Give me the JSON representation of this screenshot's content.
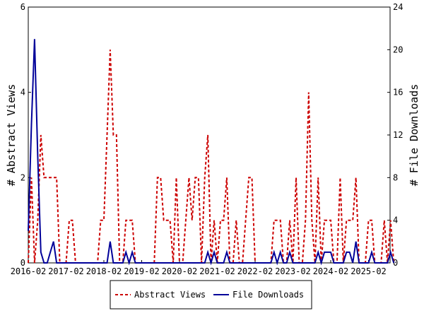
{
  "chart_data": {
    "type": "line",
    "title": "",
    "xlabel": "",
    "ylabel_left": "# Abstract Views",
    "ylabel_right": "# File Downloads",
    "ylim_left": [
      0,
      6
    ],
    "ylim_right": [
      0,
      24
    ],
    "yticks_left": [
      "0",
      "2",
      "4",
      "6"
    ],
    "yticks_right": [
      "0",
      "4",
      "8",
      "12",
      "16",
      "20",
      "24"
    ],
    "x_ticks": [
      "2016-02",
      "2017-02",
      "2018-02",
      "2019-02",
      "2020-02",
      "2021-02",
      "2022-02",
      "2023-02",
      "2024-02",
      "2025-02"
    ],
    "x_range": [
      "2016-02",
      "2025-08"
    ],
    "grid": false,
    "legend_position": "bottom",
    "series": [
      {
        "name": "Abstract Views",
        "axis": "left",
        "color": "#cc0000",
        "style": "dashed",
        "points": [
          [
            "2016-02",
            0
          ],
          [
            "2016-03",
            2
          ],
          [
            "2016-04",
            0
          ],
          [
            "2016-05",
            1
          ],
          [
            "2016-06",
            3
          ],
          [
            "2016-07",
            2
          ],
          [
            "2016-08",
            2
          ],
          [
            "2016-09",
            2
          ],
          [
            "2016-10",
            2
          ],
          [
            "2016-11",
            2
          ],
          [
            "2016-12",
            0
          ],
          [
            "2017-01",
            0
          ],
          [
            "2017-02",
            0
          ],
          [
            "2017-03",
            1
          ],
          [
            "2017-04",
            1
          ],
          [
            "2017-05",
            0
          ],
          [
            "2017-06",
            0
          ],
          [
            "2017-07",
            0
          ],
          [
            "2017-08",
            0
          ],
          [
            "2017-09",
            0
          ],
          [
            "2017-10",
            0
          ],
          [
            "2017-11",
            0
          ],
          [
            "2017-12",
            0
          ],
          [
            "2018-01",
            1
          ],
          [
            "2018-02",
            1
          ],
          [
            "2018-03",
            3
          ],
          [
            "2018-04",
            5
          ],
          [
            "2018-05",
            3
          ],
          [
            "2018-06",
            3
          ],
          [
            "2018-07",
            0
          ],
          [
            "2018-08",
            0
          ],
          [
            "2018-09",
            1
          ],
          [
            "2018-10",
            1
          ],
          [
            "2018-11",
            1
          ],
          [
            "2018-12",
            0
          ],
          [
            "2019-01",
            0
          ],
          [
            "2019-02",
            0
          ],
          [
            "2019-03",
            0
          ],
          [
            "2019-04",
            0
          ],
          [
            "2019-05",
            0
          ],
          [
            "2019-06",
            0
          ],
          [
            "2019-07",
            2
          ],
          [
            "2019-08",
            2
          ],
          [
            "2019-09",
            1
          ],
          [
            "2019-10",
            1
          ],
          [
            "2019-11",
            1
          ],
          [
            "2019-12",
            0
          ],
          [
            "2020-01",
            2
          ],
          [
            "2020-02",
            0
          ],
          [
            "2020-03",
            0
          ],
          [
            "2020-04",
            1
          ],
          [
            "2020-05",
            2
          ],
          [
            "2020-06",
            1
          ],
          [
            "2020-07",
            2
          ],
          [
            "2020-08",
            2
          ],
          [
            "2020-09",
            0
          ],
          [
            "2020-10",
            2
          ],
          [
            "2020-11",
            3
          ],
          [
            "2020-12",
            0
          ],
          [
            "2021-01",
            1
          ],
          [
            "2021-02",
            0
          ],
          [
            "2021-03",
            1
          ],
          [
            "2021-04",
            1
          ],
          [
            "2021-05",
            2
          ],
          [
            "2021-06",
            0
          ],
          [
            "2021-07",
            0
          ],
          [
            "2021-08",
            1
          ],
          [
            "2021-09",
            0
          ],
          [
            "2021-10",
            0
          ],
          [
            "2021-11",
            1
          ],
          [
            "2021-12",
            2
          ],
          [
            "2022-01",
            2
          ],
          [
            "2022-02",
            0
          ],
          [
            "2022-03",
            0
          ],
          [
            "2022-04",
            0
          ],
          [
            "2022-05",
            0
          ],
          [
            "2022-06",
            0
          ],
          [
            "2022-07",
            0
          ],
          [
            "2022-08",
            1
          ],
          [
            "2022-09",
            1
          ],
          [
            "2022-10",
            1
          ],
          [
            "2022-11",
            0
          ],
          [
            "2022-12",
            0
          ],
          [
            "2023-01",
            1
          ],
          [
            "2023-02",
            0
          ],
          [
            "2023-03",
            2
          ],
          [
            "2023-04",
            0
          ],
          [
            "2023-05",
            0
          ],
          [
            "2023-06",
            1
          ],
          [
            "2023-07",
            4
          ],
          [
            "2023-08",
            1
          ],
          [
            "2023-09",
            0
          ],
          [
            "2023-10",
            2
          ],
          [
            "2023-11",
            0
          ],
          [
            "2023-12",
            1
          ],
          [
            "2024-01",
            1
          ],
          [
            "2024-02",
            1
          ],
          [
            "2024-03",
            0
          ],
          [
            "2024-04",
            0
          ],
          [
            "2024-05",
            2
          ],
          [
            "2024-06",
            0
          ],
          [
            "2024-07",
            1
          ],
          [
            "2024-08",
            1
          ],
          [
            "2024-09",
            1
          ],
          [
            "2024-10",
            2
          ],
          [
            "2024-11",
            0
          ],
          [
            "2024-12",
            0
          ],
          [
            "2025-01",
            0
          ],
          [
            "2025-02",
            1
          ],
          [
            "2025-03",
            1
          ],
          [
            "2025-04",
            0
          ],
          [
            "2025-05",
            0
          ],
          [
            "2025-06",
            0
          ],
          [
            "2025-07",
            1
          ],
          [
            "2025-08",
            0
          ],
          [
            "2025-09",
            1
          ],
          [
            "2025-10",
            0
          ]
        ]
      },
      {
        "name": "File Downloads",
        "axis": "right",
        "color": "#000099",
        "style": "solid",
        "points": [
          [
            "2016-02",
            3
          ],
          [
            "2016-03",
            13
          ],
          [
            "2016-04",
            21
          ],
          [
            "2016-05",
            10
          ],
          [
            "2016-06",
            1
          ],
          [
            "2016-07",
            0
          ],
          [
            "2016-08",
            0
          ],
          [
            "2016-09",
            1
          ],
          [
            "2016-10",
            2
          ],
          [
            "2016-11",
            0
          ],
          [
            "2016-12",
            0
          ],
          [
            "2017-01",
            0
          ],
          [
            "2017-02",
            0
          ],
          [
            "2017-03",
            0
          ],
          [
            "2017-04",
            0
          ],
          [
            "2017-05",
            0
          ],
          [
            "2017-06",
            0
          ],
          [
            "2017-07",
            0
          ],
          [
            "2017-08",
            0
          ],
          [
            "2017-09",
            0
          ],
          [
            "2017-10",
            0
          ],
          [
            "2017-11",
            0
          ],
          [
            "2017-12",
            0
          ],
          [
            "2018-01",
            0
          ],
          [
            "2018-02",
            0
          ],
          [
            "2018-03",
            0
          ],
          [
            "2018-04",
            2
          ],
          [
            "2018-05",
            0
          ],
          [
            "2018-06",
            0
          ],
          [
            "2018-07",
            0
          ],
          [
            "2018-08",
            0
          ],
          [
            "2018-09",
            1
          ],
          [
            "2018-10",
            0
          ],
          [
            "2018-11",
            1
          ],
          [
            "2018-12",
            0
          ],
          [
            "2019-01",
            0
          ],
          [
            "2019-02",
            0
          ],
          [
            "2019-03",
            0
          ],
          [
            "2019-04",
            0
          ],
          [
            "2019-05",
            0
          ],
          [
            "2019-06",
            0
          ],
          [
            "2019-07",
            0
          ],
          [
            "2019-08",
            0
          ],
          [
            "2019-09",
            0
          ],
          [
            "2019-10",
            0
          ],
          [
            "2019-11",
            0
          ],
          [
            "2019-12",
            0
          ],
          [
            "2020-01",
            0
          ],
          [
            "2020-02",
            0
          ],
          [
            "2020-03",
            0
          ],
          [
            "2020-04",
            0
          ],
          [
            "2020-05",
            0
          ],
          [
            "2020-06",
            0
          ],
          [
            "2020-07",
            0
          ],
          [
            "2020-08",
            0
          ],
          [
            "2020-09",
            0
          ],
          [
            "2020-10",
            0
          ],
          [
            "2020-11",
            1
          ],
          [
            "2020-12",
            0
          ],
          [
            "2021-01",
            1
          ],
          [
            "2021-02",
            0
          ],
          [
            "2021-03",
            0
          ],
          [
            "2021-04",
            0
          ],
          [
            "2021-05",
            1
          ],
          [
            "2021-06",
            0
          ],
          [
            "2021-07",
            0
          ],
          [
            "2021-08",
            0
          ],
          [
            "2021-09",
            0
          ],
          [
            "2021-10",
            0
          ],
          [
            "2021-11",
            0
          ],
          [
            "2021-12",
            0
          ],
          [
            "2022-01",
            0
          ],
          [
            "2022-02",
            0
          ],
          [
            "2022-03",
            0
          ],
          [
            "2022-04",
            0
          ],
          [
            "2022-05",
            0
          ],
          [
            "2022-06",
            0
          ],
          [
            "2022-07",
            0
          ],
          [
            "2022-08",
            1
          ],
          [
            "2022-09",
            0
          ],
          [
            "2022-10",
            1
          ],
          [
            "2022-11",
            0
          ],
          [
            "2022-12",
            0
          ],
          [
            "2023-01",
            1
          ],
          [
            "2023-02",
            0
          ],
          [
            "2023-03",
            0
          ],
          [
            "2023-04",
            0
          ],
          [
            "2023-05",
            0
          ],
          [
            "2023-06",
            0
          ],
          [
            "2023-07",
            0
          ],
          [
            "2023-08",
            0
          ],
          [
            "2023-09",
            0
          ],
          [
            "2023-10",
            1
          ],
          [
            "2023-11",
            0
          ],
          [
            "2023-12",
            1
          ],
          [
            "2024-01",
            1
          ],
          [
            "2024-02",
            1
          ],
          [
            "2024-03",
            0
          ],
          [
            "2024-04",
            0
          ],
          [
            "2024-05",
            0
          ],
          [
            "2024-06",
            0
          ],
          [
            "2024-07",
            1
          ],
          [
            "2024-08",
            1
          ],
          [
            "2024-09",
            0
          ],
          [
            "2024-10",
            2
          ],
          [
            "2024-11",
            0
          ],
          [
            "2024-12",
            0
          ],
          [
            "2025-01",
            0
          ],
          [
            "2025-02",
            0
          ],
          [
            "2025-03",
            1
          ],
          [
            "2025-04",
            0
          ],
          [
            "2025-05",
            0
          ],
          [
            "2025-06",
            0
          ],
          [
            "2025-07",
            0
          ],
          [
            "2025-08",
            0
          ],
          [
            "2025-09",
            1
          ],
          [
            "2025-10",
            0
          ]
        ]
      }
    ]
  }
}
